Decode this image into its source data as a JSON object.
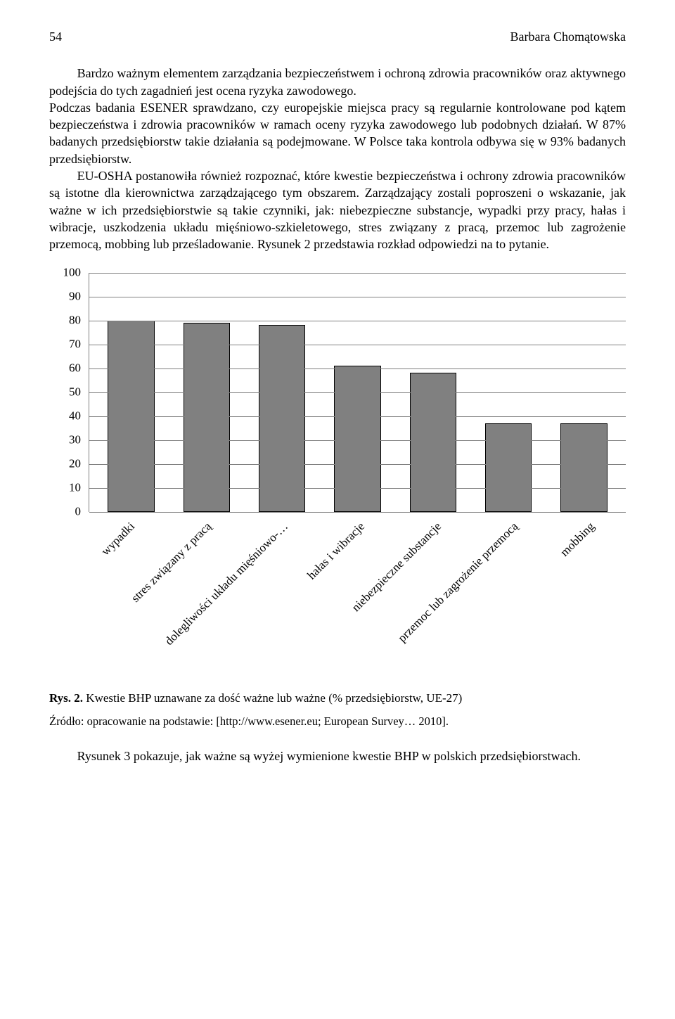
{
  "header": {
    "page_number": "54",
    "author": "Barbara Chomątowska"
  },
  "paragraphs": {
    "p1": "Bardzo ważnym elementem zarządzania bezpieczeństwem i ochroną zdrowia pracowników oraz aktywnego podejścia do tych zagadnień jest ocena ryzyka zawodowego.",
    "p2": "Podczas badania ESENER sprawdzano, czy europejskie miejsca pracy są regularnie kontrolowane pod kątem bezpieczeństwa i zdrowia pracowników w ramach oceny ryzyka zawodowego lub podobnych działań. W 87% badanych przedsiębiorstw takie działania są podejmowane. W Polsce taka kontrola odbywa się w 93% badanych przedsiębiorstw.",
    "p3": "EU-OSHA postanowiła również rozpoznać, które kwestie bezpieczeństwa i ochrony zdrowia pracowników są istotne dla kierownictwa zarządzającego tym obszarem. Zarządzający zostali poproszeni o wskazanie, jak ważne w ich przedsiębiorstwie są takie czynniki, jak: niebezpieczne substancje, wypadki przy pracy, hałas i wibracje, uszkodzenia układu mięśniowo-szkieletowego, stres związany z pracą, przemoc lub zagrożenie przemocą, mobbing lub prześladowanie. Rysunek 2 przedstawia rozkład odpowiedzi na to pytanie."
  },
  "chart": {
    "type": "bar",
    "ylim": [
      0,
      100
    ],
    "ytick_step": 10,
    "bar_color": "#808080",
    "bar_border": "#000000",
    "grid_color": "#808080",
    "background_color": "#ffffff",
    "label_fontsize": 17,
    "categories": [
      "wypadki",
      "stres związany z pracą",
      "dolegliwości układu mięśniowo-…",
      "hałas i wibracje",
      "niebezpieczne substancje",
      "przemoc lub zagrożenie przemocą",
      "mobbing"
    ],
    "values": [
      80,
      79,
      78,
      61,
      58,
      37,
      37
    ],
    "y_labels": [
      "0",
      "10",
      "20",
      "30",
      "40",
      "50",
      "60",
      "70",
      "80",
      "90",
      "100"
    ]
  },
  "caption": {
    "label": "Rys. 2.",
    "text": " Kwestie BHP uznawane za dość ważne lub ważne (% przedsiębiorstw, UE-27)"
  },
  "source": "Źródło: opracowanie na podstawie: [http://www.esener.eu; European Survey… 2010].",
  "final": "Rysunek 3 pokazuje, jak ważne są wyżej wymienione kwestie BHP w polskich przedsiębiorstwach."
}
